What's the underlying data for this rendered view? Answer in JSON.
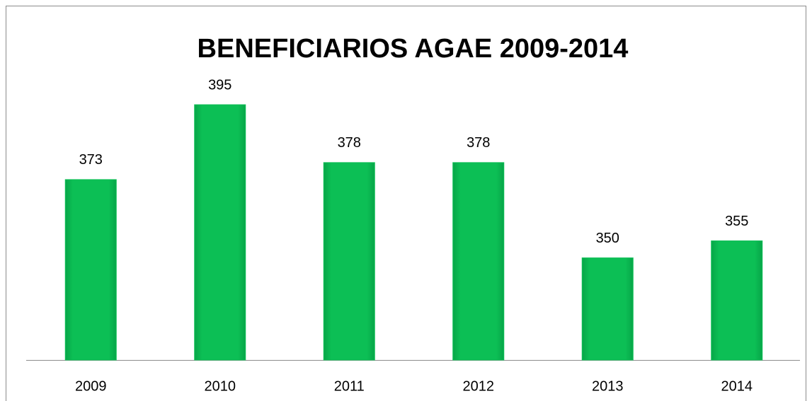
{
  "chart_data": {
    "type": "bar",
    "title": "BENEFICIARIOS AGAE 2009-2014",
    "categories": [
      "2009",
      "2010",
      "2011",
      "2012",
      "2013",
      "2014"
    ],
    "values": [
      373,
      395,
      378,
      378,
      350,
      355
    ],
    "color": "#0cbf55",
    "ylim": [
      320,
      400
    ]
  }
}
